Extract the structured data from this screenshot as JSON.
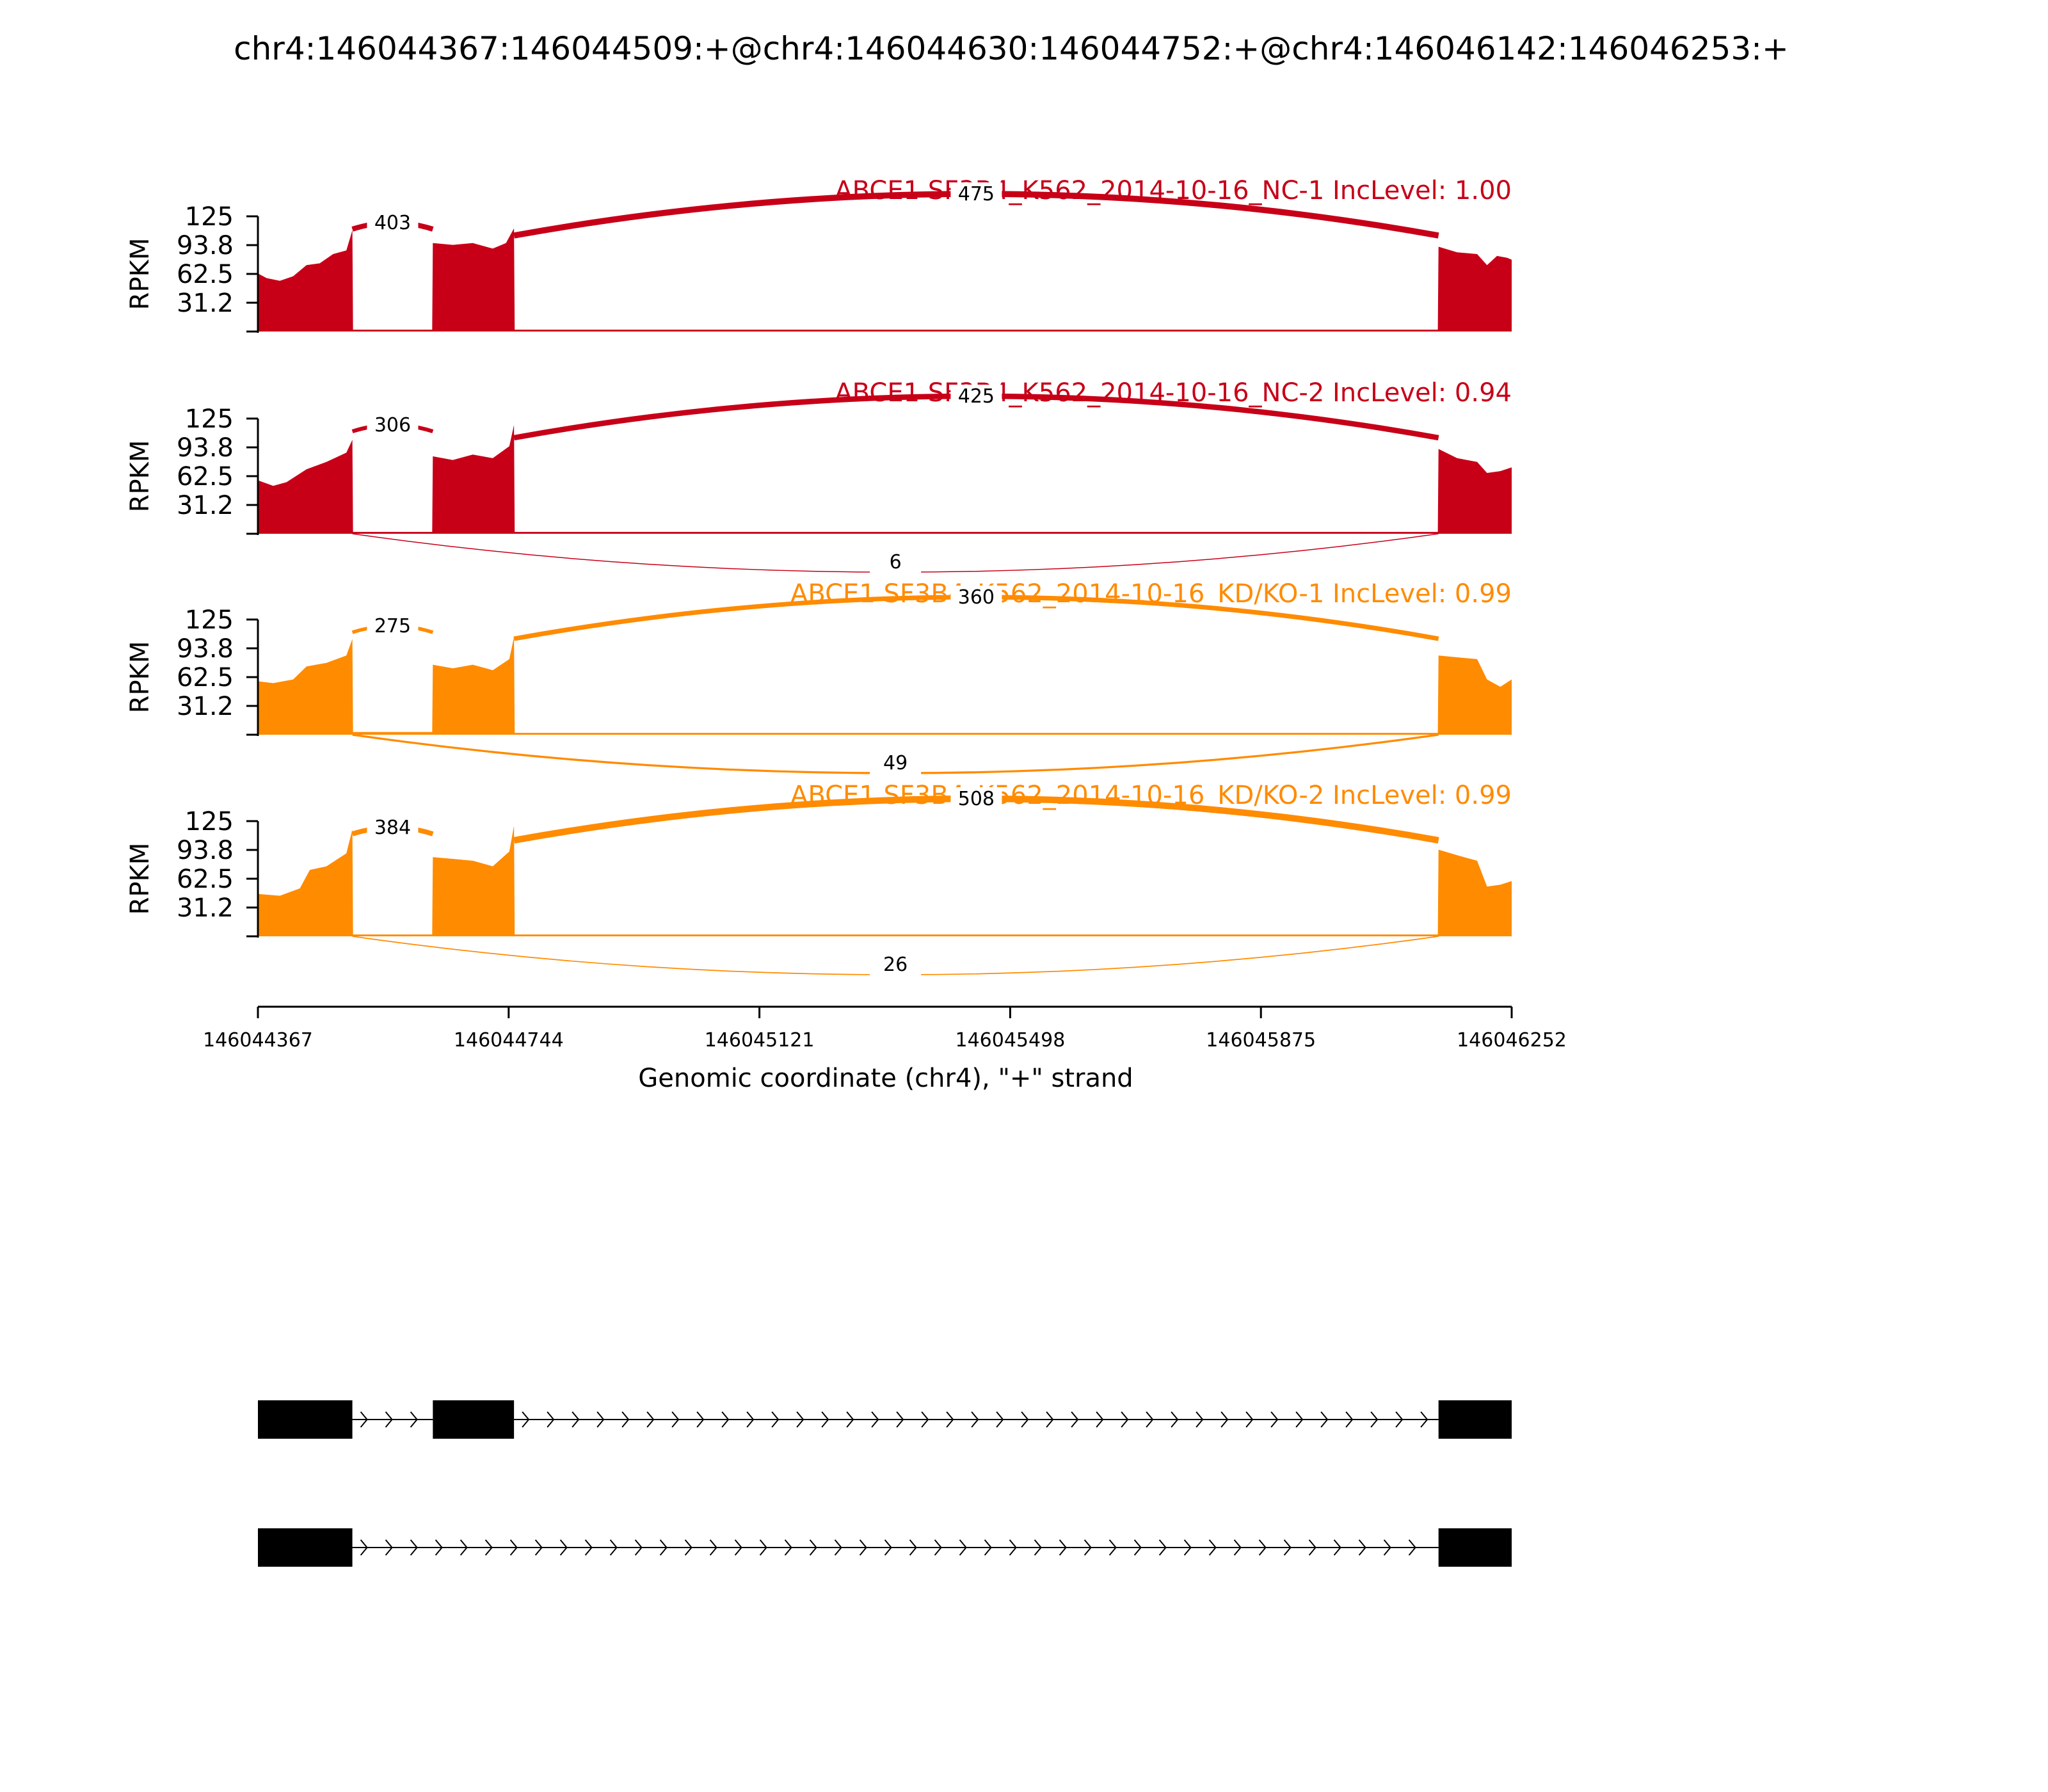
{
  "chart_data": {
    "type": "area",
    "title": "chr4:146044367:146044509:+@chr4:146044630:146044752:+@chr4:146046142:146046253:+",
    "xlabel": "Genomic coordinate (chr4), \"+\" strand",
    "xlim": [
      146044367,
      146046252
    ],
    "xticks": [
      "146044367",
      "146044744",
      "146045121",
      "146045498",
      "146045875",
      "146046252"
    ],
    "exons": [
      {
        "start": 146044367,
        "end": 146044509
      },
      {
        "start": 146044630,
        "end": 146044752
      },
      {
        "start": 146046142,
        "end": 146046253
      }
    ],
    "tracks": [
      {
        "name": "ABCE1 SF3B4_K562_2014-10-16_NC-1 IncLevel: 1.00",
        "color": "#c70018",
        "ylabel": "RPKM",
        "yticks": [
          "125",
          "93.8",
          "62.5",
          "31.2"
        ],
        "ylim": [
          0,
          125
        ],
        "junctions": [
          {
            "from": 146044509,
            "to": 146044630,
            "count": "403",
            "side": "above"
          },
          {
            "from": 146044752,
            "to": 146046142,
            "count": "475",
            "side": "above"
          }
        ],
        "coverage": [
          [
            146044367,
            63
          ],
          [
            146044380,
            58
          ],
          [
            146044400,
            55
          ],
          [
            146044420,
            60
          ],
          [
            146044440,
            72
          ],
          [
            146044460,
            74
          ],
          [
            146044480,
            84
          ],
          [
            146044500,
            88
          ],
          [
            146044509,
            110
          ],
          [
            146044510,
            2
          ],
          [
            146044629,
            2
          ],
          [
            146044630,
            96
          ],
          [
            146044660,
            94
          ],
          [
            146044690,
            96
          ],
          [
            146044720,
            90
          ],
          [
            146044740,
            96
          ],
          [
            146044752,
            112
          ],
          [
            146044753,
            2
          ],
          [
            146046141,
            2
          ],
          [
            146046142,
            92
          ],
          [
            146046170,
            86
          ],
          [
            146046200,
            84
          ],
          [
            146046215,
            72
          ],
          [
            146046230,
            82
          ],
          [
            146046245,
            80
          ],
          [
            146046252,
            78
          ]
        ]
      },
      {
        "name": "ABCE1 SF3B4_K562_2014-10-16_NC-2 IncLevel: 0.94",
        "color": "#c70018",
        "ylabel": "RPKM",
        "yticks": [
          "125",
          "93.8",
          "62.5",
          "31.2"
        ],
        "ylim": [
          0,
          125
        ],
        "junctions": [
          {
            "from": 146044509,
            "to": 146044630,
            "count": "306",
            "side": "above"
          },
          {
            "from": 146044752,
            "to": 146046142,
            "count": "425",
            "side": "above"
          },
          {
            "from": 146044509,
            "to": 146046142,
            "count": "6",
            "side": "below"
          }
        ],
        "coverage": [
          [
            146044367,
            58
          ],
          [
            146044390,
            52
          ],
          [
            146044410,
            56
          ],
          [
            146044440,
            70
          ],
          [
            146044470,
            78
          ],
          [
            146044500,
            88
          ],
          [
            146044509,
            102
          ],
          [
            146044510,
            2
          ],
          [
            146044629,
            2
          ],
          [
            146044630,
            84
          ],
          [
            146044660,
            80
          ],
          [
            146044690,
            86
          ],
          [
            146044720,
            82
          ],
          [
            146044745,
            95
          ],
          [
            146044752,
            118
          ],
          [
            146044753,
            2
          ],
          [
            146046141,
            2
          ],
          [
            146046142,
            92
          ],
          [
            146046170,
            82
          ],
          [
            146046200,
            78
          ],
          [
            146046215,
            66
          ],
          [
            146046235,
            68
          ],
          [
            146046252,
            72
          ]
        ]
      },
      {
        "name": "ABCE1 SF3B4_K562_2014-10-16_KD/KO-1 IncLevel: 0.99",
        "color": "#ff8b00",
        "ylabel": "RPKM",
        "yticks": [
          "125",
          "93.8",
          "62.5",
          "31.2"
        ],
        "ylim": [
          0,
          125
        ],
        "junctions": [
          {
            "from": 146044509,
            "to": 146044630,
            "count": "275",
            "side": "above"
          },
          {
            "from": 146044752,
            "to": 146046142,
            "count": "360",
            "side": "above"
          },
          {
            "from": 146044509,
            "to": 146046142,
            "count": "49",
            "side": "below"
          }
        ],
        "coverage": [
          [
            146044367,
            58
          ],
          [
            146044390,
            56
          ],
          [
            146044420,
            60
          ],
          [
            146044440,
            74
          ],
          [
            146044470,
            78
          ],
          [
            146044500,
            86
          ],
          [
            146044509,
            104
          ],
          [
            146044510,
            3
          ],
          [
            146044629,
            3
          ],
          [
            146044630,
            76
          ],
          [
            146044660,
            72
          ],
          [
            146044690,
            76
          ],
          [
            146044720,
            70
          ],
          [
            146044745,
            82
          ],
          [
            146044752,
            106
          ],
          [
            146044753,
            2
          ],
          [
            146046141,
            2
          ],
          [
            146046142,
            86
          ],
          [
            146046170,
            84
          ],
          [
            146046200,
            82
          ],
          [
            146046215,
            60
          ],
          [
            146046235,
            52
          ],
          [
            146046252,
            60
          ]
        ]
      },
      {
        "name": "ABCE1 SF3B4_K562_2014-10-16_KD/KO-2 IncLevel: 0.99",
        "color": "#ff8b00",
        "ylabel": "RPKM",
        "yticks": [
          "125",
          "93.8",
          "62.5",
          "31.2"
        ],
        "ylim": [
          0,
          125
        ],
        "junctions": [
          {
            "from": 146044509,
            "to": 146044630,
            "count": "384",
            "side": "above"
          },
          {
            "from": 146044752,
            "to": 146046142,
            "count": "508",
            "side": "above"
          },
          {
            "from": 146044509,
            "to": 146046142,
            "count": "26",
            "side": "below"
          }
        ],
        "coverage": [
          [
            146044367,
            46
          ],
          [
            146044400,
            44
          ],
          [
            146044430,
            52
          ],
          [
            146044445,
            72
          ],
          [
            146044470,
            76
          ],
          [
            146044500,
            90
          ],
          [
            146044509,
            116
          ],
          [
            146044510,
            2
          ],
          [
            146044629,
            2
          ],
          [
            146044630,
            86
          ],
          [
            146044660,
            84
          ],
          [
            146044690,
            82
          ],
          [
            146044720,
            76
          ],
          [
            146044745,
            92
          ],
          [
            146044752,
            120
          ],
          [
            146044753,
            2
          ],
          [
            146046141,
            2
          ],
          [
            146046142,
            94
          ],
          [
            146046170,
            88
          ],
          [
            146046200,
            82
          ],
          [
            146046215,
            54
          ],
          [
            146046235,
            56
          ],
          [
            146046252,
            60
          ]
        ]
      }
    ],
    "isoforms": [
      {
        "exons": [
          0,
          1,
          2
        ],
        "strand": "+"
      },
      {
        "exons": [
          0,
          2
        ],
        "strand": "+"
      }
    ]
  }
}
